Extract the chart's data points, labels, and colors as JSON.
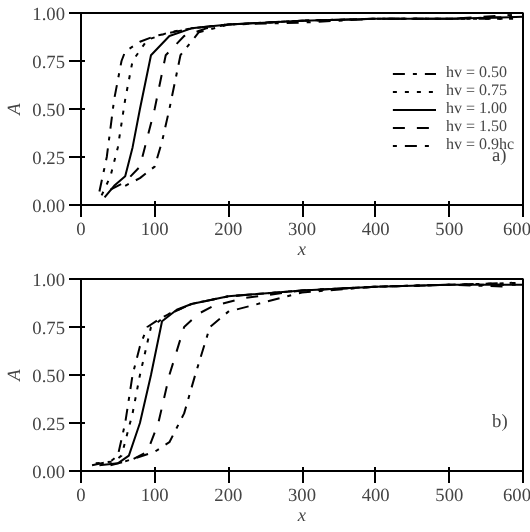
{
  "chart_data": [
    {
      "type": "line",
      "xlabel": "x",
      "ylabel": "A",
      "xlim": [
        0,
        600
      ],
      "ylim": [
        0,
        1
      ],
      "xticks": [
        0,
        100,
        200,
        300,
        400,
        500,
        600
      ],
      "yticks": [
        {
          "value": 0,
          "label": "0.00"
        },
        {
          "value": 0.25,
          "label": "0.25"
        },
        {
          "value": 0.5,
          "label": "0.50"
        },
        {
          "value": 0.75,
          "label": "0.75"
        },
        {
          "value": 1,
          "label": "1.00"
        }
      ],
      "grid": false,
      "legend": "right",
      "annotations": [
        "a)"
      ],
      "series": [
        {
          "name": "hv = 0.50",
          "color": "#000000",
          "line_style": "dashdot",
          "x": [
            25,
            35,
            45,
            55,
            60,
            80,
            100,
            150,
            200,
            300,
            400,
            500,
            590
          ],
          "values": [
            0.07,
            0.25,
            0.55,
            0.75,
            0.8,
            0.85,
            0.88,
            0.92,
            0.94,
            0.96,
            0.97,
            0.97,
            0.98
          ]
        },
        {
          "name": "hv = 0.75",
          "color": "#000000",
          "line_style": "dotted",
          "x": [
            28,
            40,
            50,
            60,
            70,
            90,
            120,
            150,
            200,
            300,
            400,
            500,
            595
          ],
          "values": [
            0.05,
            0.15,
            0.3,
            0.55,
            0.75,
            0.86,
            0.9,
            0.92,
            0.94,
            0.96,
            0.97,
            0.97,
            0.97
          ]
        },
        {
          "name": "hv = 1.00",
          "color": "#000000",
          "line_style": "solid",
          "x": [
            32,
            45,
            60,
            70,
            80,
            95,
            120,
            150,
            200,
            300,
            400,
            500,
            600
          ],
          "values": [
            0.04,
            0.1,
            0.15,
            0.3,
            0.5,
            0.78,
            0.88,
            0.92,
            0.94,
            0.96,
            0.97,
            0.97,
            0.98
          ]
        },
        {
          "name": "hv = 1.50",
          "color": "#000000",
          "line_style": "dashed",
          "x": [
            40,
            60,
            80,
            90,
            100,
            115,
            140,
            170,
            200,
            300,
            400,
            500,
            585
          ],
          "values": [
            0.08,
            0.12,
            0.2,
            0.35,
            0.5,
            0.78,
            0.88,
            0.92,
            0.94,
            0.96,
            0.97,
            0.97,
            0.99
          ]
        },
        {
          "name": "hv = 0.9hc",
          "color": "#000000",
          "line_style": "dotdash",
          "x": [
            60,
            80,
            100,
            110,
            120,
            135,
            160,
            200,
            300,
            400,
            500,
            580
          ],
          "values": [
            0.1,
            0.14,
            0.2,
            0.33,
            0.5,
            0.78,
            0.9,
            0.94,
            0.95,
            0.97,
            0.97,
            0.97
          ]
        }
      ]
    },
    {
      "type": "line",
      "xlabel": "x",
      "ylabel": "A",
      "xlim": [
        0,
        600
      ],
      "ylim": [
        0,
        1
      ],
      "xticks": [
        0,
        100,
        200,
        300,
        400,
        500,
        600
      ],
      "yticks": [
        {
          "value": 0,
          "label": "0.00"
        },
        {
          "value": 0.25,
          "label": "0.25"
        },
        {
          "value": 0.5,
          "label": "0.50"
        },
        {
          "value": 0.75,
          "label": "0.75"
        },
        {
          "value": 1,
          "label": "1.00"
        }
      ],
      "grid": false,
      "annotations": [
        "b)"
      ],
      "series": [
        {
          "color": "#000000",
          "line_style": "dashdot",
          "x": [
            15,
            40,
            50,
            60,
            70,
            80,
            90,
            110,
            150,
            200,
            300,
            400,
            500,
            590
          ],
          "values": [
            0.03,
            0.05,
            0.08,
            0.25,
            0.5,
            0.65,
            0.75,
            0.8,
            0.87,
            0.91,
            0.94,
            0.96,
            0.97,
            0.97
          ]
        },
        {
          "color": "#000000",
          "line_style": "dotted",
          "x": [
            20,
            45,
            55,
            70,
            80,
            95,
            120,
            150,
            200,
            300,
            400,
            500,
            595
          ],
          "values": [
            0.04,
            0.05,
            0.08,
            0.3,
            0.5,
            0.75,
            0.82,
            0.87,
            0.91,
            0.94,
            0.96,
            0.97,
            0.98
          ]
        },
        {
          "color": "#000000",
          "line_style": "solid",
          "x": [
            25,
            50,
            65,
            80,
            95,
            110,
            130,
            150,
            200,
            300,
            400,
            500,
            600
          ],
          "values": [
            0.03,
            0.04,
            0.08,
            0.25,
            0.5,
            0.78,
            0.84,
            0.87,
            0.91,
            0.94,
            0.96,
            0.97,
            0.97
          ]
        },
        {
          "color": "#000000",
          "line_style": "dashed",
          "x": [
            40,
            70,
            90,
            105,
            120,
            140,
            160,
            180,
            220,
            300,
            400,
            500,
            585
          ],
          "values": [
            0.03,
            0.06,
            0.1,
            0.25,
            0.5,
            0.75,
            0.82,
            0.86,
            0.9,
            0.94,
            0.96,
            0.97,
            0.98
          ]
        },
        {
          "color": "#000000",
          "line_style": "dotdash",
          "x": [
            60,
            100,
            120,
            140,
            155,
            175,
            200,
            250,
            300,
            400,
            500,
            580
          ],
          "values": [
            0.05,
            0.1,
            0.15,
            0.3,
            0.5,
            0.75,
            0.83,
            0.88,
            0.93,
            0.96,
            0.97,
            0.96
          ]
        }
      ]
    }
  ]
}
